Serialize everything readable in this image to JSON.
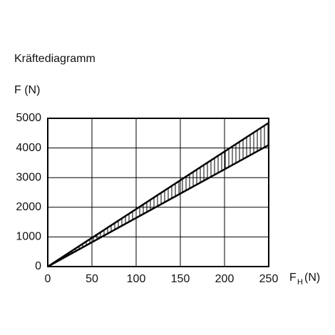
{
  "chart_data": {
    "type": "band",
    "title": "Kräftediagramm",
    "ylabel": "F (N)",
    "xlabel": [
      "F",
      "H",
      "(N)"
    ],
    "x": [
      0,
      250
    ],
    "series": [
      {
        "color": "#000000",
        "values": [
          0,
          4850
        ]
      },
      {
        "color": "#000000",
        "values": [
          0,
          4100
        ]
      }
    ],
    "xlim": [
      0,
      250
    ],
    "xticks": [
      0,
      50,
      100,
      150,
      200,
      250
    ],
    "ylim": [
      0,
      5000
    ],
    "yticks": [
      0,
      1000,
      2000,
      3000,
      4000,
      5000
    ],
    "grid": true
  }
}
